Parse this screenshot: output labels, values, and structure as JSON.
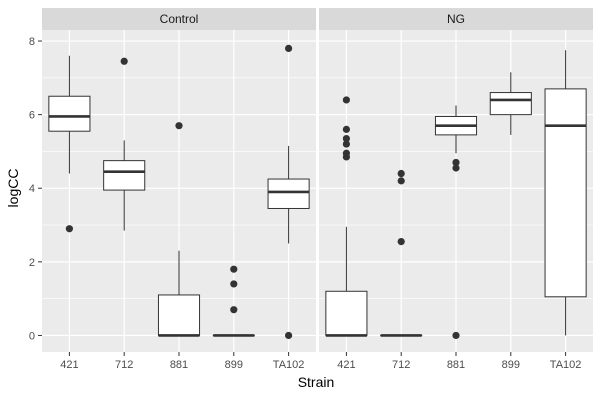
{
  "chart_data": {
    "type": "boxplot",
    "xlabel": "Strain",
    "ylabel": "logCC",
    "ylim": [
      -0.45,
      8.3
    ],
    "yticks": [
      0,
      2,
      4,
      6,
      8
    ],
    "categories": [
      "421",
      "712",
      "881",
      "899",
      "TA102"
    ],
    "colors": {
      "panel_bg": "#ebebeb",
      "strip_bg": "#d9d9d9",
      "grid_major": "#ffffff",
      "box_fill": "#ffffff",
      "box_line": "#333333"
    },
    "panels": [
      {
        "title": "Control",
        "boxes": [
          {
            "category": "421",
            "lower": 4.4,
            "q1": 5.55,
            "median": 5.95,
            "q3": 6.5,
            "upper": 7.6,
            "outliers": [
              2.9
            ]
          },
          {
            "category": "712",
            "lower": 2.85,
            "q1": 3.95,
            "median": 4.45,
            "q3": 4.75,
            "upper": 5.3,
            "outliers": [
              7.45
            ]
          },
          {
            "category": "881",
            "lower": 0.0,
            "q1": 0.0,
            "median": 0.0,
            "q3": 1.1,
            "upper": 2.3,
            "outliers": [
              5.7
            ]
          },
          {
            "category": "899",
            "lower": 0.0,
            "q1": 0.0,
            "median": 0.0,
            "q3": 0.0,
            "upper": 0.0,
            "outliers": [
              1.8,
              1.4,
              0.7
            ]
          },
          {
            "category": "TA102",
            "lower": 2.5,
            "q1": 3.45,
            "median": 3.9,
            "q3": 4.25,
            "upper": 5.15,
            "outliers": [
              7.8,
              0.0
            ]
          }
        ]
      },
      {
        "title": "NG",
        "boxes": [
          {
            "category": "421",
            "lower": 0.0,
            "q1": 0.0,
            "median": 0.0,
            "q3": 1.2,
            "upper": 2.95,
            "outliers": [
              6.4,
              5.6,
              5.35,
              5.2,
              4.95,
              4.85
            ]
          },
          {
            "category": "712",
            "lower": 0.0,
            "q1": 0.0,
            "median": 0.0,
            "q3": 0.0,
            "upper": 0.0,
            "outliers": [
              4.4,
              4.2,
              2.55
            ]
          },
          {
            "category": "881",
            "lower": 4.95,
            "q1": 5.45,
            "median": 5.7,
            "q3": 5.95,
            "upper": 6.25,
            "outliers": [
              4.7,
              4.55,
              0.0
            ]
          },
          {
            "category": "899",
            "lower": 5.45,
            "q1": 6.0,
            "median": 6.4,
            "q3": 6.6,
            "upper": 7.15,
            "outliers": []
          },
          {
            "category": "TA102",
            "lower": 0.0,
            "q1": 1.05,
            "median": 5.7,
            "q3": 6.7,
            "upper": 7.75,
            "outliers": []
          }
        ]
      }
    ]
  }
}
